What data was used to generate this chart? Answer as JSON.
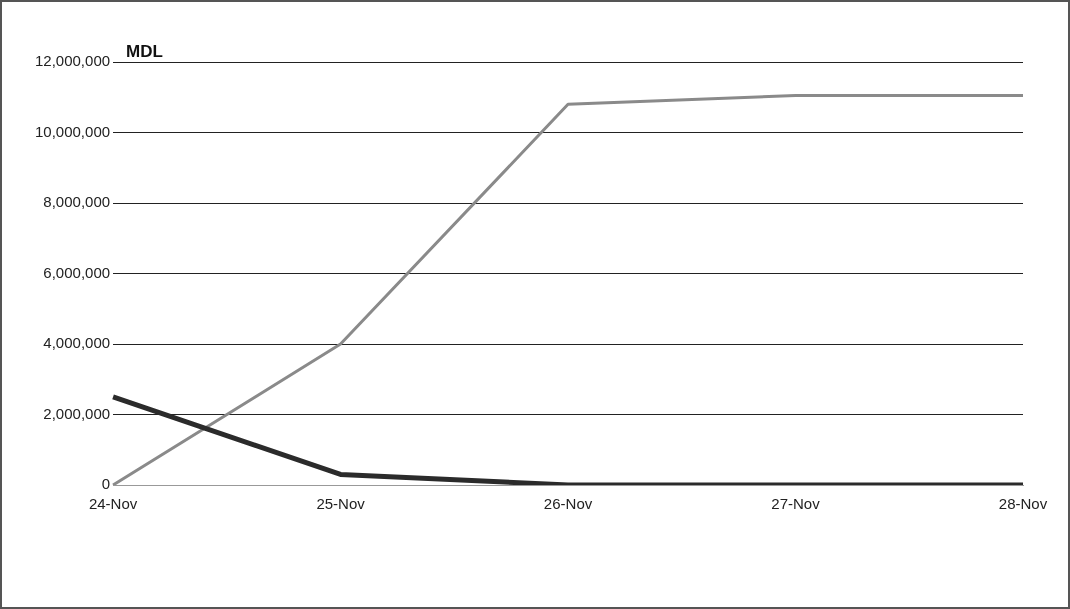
{
  "chart_data": {
    "type": "line",
    "ylabel": "MDL",
    "categories": [
      "24-Nov",
      "25-Nov",
      "26-Nov",
      "27-Nov",
      "28-Nov"
    ],
    "series": [
      {
        "color": "#2b2b2b",
        "values": [
          2500000,
          300000,
          0,
          0,
          0
        ]
      },
      {
        "color": "#8a8a8a",
        "values": [
          0,
          4000000,
          10800000,
          11050000,
          11050000
        ]
      }
    ],
    "ylim": [
      0,
      12000000
    ],
    "yticks": [
      0,
      {
        "value": 2000000,
        "label": "2,000,000"
      },
      {
        "value": 4000000,
        "label": "4,000,000"
      },
      {
        "value": 6000000,
        "label": "6,000,000"
      },
      {
        "value": 8000000,
        "label": "8,000,000"
      },
      {
        "value": 10000000,
        "label": "10,000,000"
      },
      {
        "value": 12000000,
        "label": "12,000,000"
      }
    ],
    "grid": "y",
    "legend": false,
    "marker": "none",
    "line_style": "solid"
  }
}
